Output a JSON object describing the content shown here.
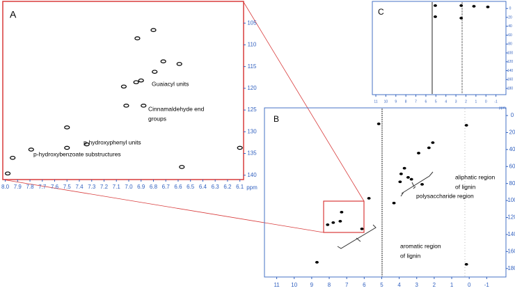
{
  "chart_data": [
    {
      "type": "scatter",
      "label": "A",
      "xlabel": "ppm",
      "color": "#000000",
      "frame_color": "#d83a3a",
      "tick_color": "#2f5fbf",
      "xlim": [
        8.02,
        6.07
      ],
      "ylim": [
        100,
        141
      ],
      "xticks": [
        {
          "value": 8,
          "label": "8.0"
        },
        7.9,
        7.8,
        7.7,
        7.6,
        7.5,
        7.4,
        7.3,
        7.2,
        7.1,
        {
          "value": 7,
          "label": "7.0"
        },
        6.9,
        6.8,
        6.7,
        6.6,
        6.5,
        6.4,
        6.3,
        6.2,
        6.1
      ],
      "yticks": [
        105,
        110,
        115,
        120,
        125,
        130,
        135,
        140
      ],
      "x": [
        6.8,
        6.93,
        6.72,
        6.59,
        6.79,
        6.94,
        6.9,
        7.04,
        7.02,
        6.88,
        7.5,
        7.5,
        7.34,
        7.79,
        7.94,
        6.57,
        6.1,
        7.98
      ],
      "y": [
        106.6,
        108.5,
        113.8,
        114.4,
        116.2,
        118.6,
        118.2,
        119.6,
        124.0,
        124.0,
        129.0,
        133.7,
        132.9,
        134.1,
        136.0,
        138.1,
        133.7,
        139.6
      ],
      "annotations": [
        [
          "Guaiacyl units"
        ],
        [
          "Cinnamaldehyde end",
          "groups"
        ],
        [
          "p-hydroxyphenyl units"
        ],
        [
          "p-hydroxybenzoate substructures"
        ]
      ]
    },
    {
      "type": "scatter",
      "label": "B",
      "color": "#000000",
      "frame_color": "#4472c4",
      "tick_color": "#2f5fbf",
      "xlim": [
        11.7,
        -2.1
      ],
      "ylim": [
        -9,
        190
      ],
      "xticks": [
        11,
        10,
        9,
        8,
        7,
        6,
        5,
        4,
        3,
        2,
        1,
        0,
        -1
      ],
      "yticks": [
        0,
        20,
        40,
        60,
        80,
        100,
        120,
        140,
        160,
        180
      ],
      "x": [
        3.89,
        3.7,
        3.49,
        3.3,
        3.95,
        2.89,
        2.08,
        2.3,
        2.69,
        8.09,
        7.77,
        7.37,
        7.29,
        6.13,
        5.73,
        5.17,
        8.7,
        0.16,
        0.16,
        4.3
      ],
      "y": [
        68.7,
        62.0,
        72.8,
        75.0,
        78.0,
        44.2,
        31.9,
        38.0,
        81.0,
        128.5,
        126.0,
        124.4,
        113.7,
        133.4,
        97.4,
        9.8,
        172.7,
        175.1,
        11.5,
        103.0
      ],
      "annotations": [
        [
          "aliphatic region",
          "of lignin"
        ],
        [
          "polysaccharide region"
        ],
        [
          "aromatic region",
          "of lignin"
        ]
      ]
    },
    {
      "type": "scatter",
      "label": "C",
      "xlabel": "ppm",
      "color": "#000000",
      "frame_color": "#4472c4",
      "tick_color": "#2f5fbf",
      "xlim": [
        11.35,
        -2.0
      ],
      "ylim": [
        -16,
        194
      ],
      "xticks": [
        11,
        10,
        9,
        8,
        7,
        6,
        5,
        4,
        3,
        2,
        1,
        0,
        -1
      ],
      "yticks": [
        0,
        20,
        40,
        60,
        80,
        100,
        120,
        140,
        160,
        180
      ],
      "x": [
        5.06,
        5.06,
        2.47,
        2.47,
        -0.19,
        1.2
      ],
      "y": [
        -6.6,
        18.5,
        -6.6,
        21.6,
        -3.5,
        -5.0
      ],
      "annotations": []
    }
  ]
}
